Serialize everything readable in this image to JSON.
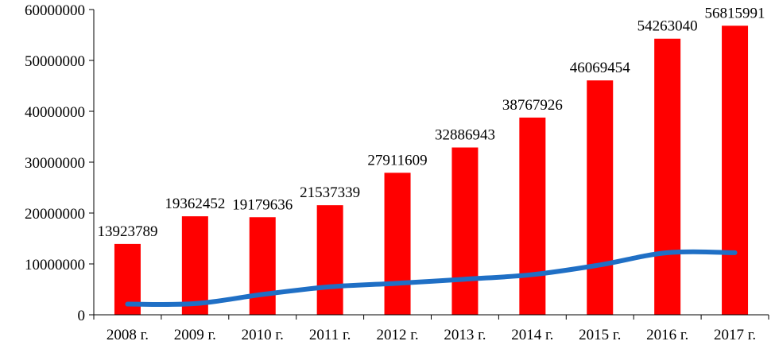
{
  "chart_data": {
    "type": "bar",
    "title": "",
    "xlabel": "",
    "ylabel": "",
    "categories": [
      "2008 г.",
      "2009 г.",
      "2010 г.",
      "2011 г.",
      "2012 г.",
      "2013 г.",
      "2014 г.",
      "2015 г.",
      "2016 г.",
      "2017 г."
    ],
    "series": [
      {
        "type": "bar",
        "color": "#ff0000",
        "values": [
          13923789,
          19362452,
          19179636,
          21537339,
          27911609,
          32886943,
          38767926,
          46069454,
          54263040,
          56815991
        ],
        "data_labels": [
          "13923789",
          "19362452",
          "19179636",
          "21537339",
          "27911609",
          "32886943",
          "38767926",
          "46069454",
          "54263040",
          "56815991"
        ]
      },
      {
        "type": "line",
        "color": "#1f6fc5",
        "values": [
          2100000,
          2200000,
          4000000,
          5500000,
          6200000,
          7000000,
          7900000,
          9800000,
          12200000,
          12200000
        ]
      }
    ],
    "ylim": [
      0,
      60000000
    ],
    "yticks": [
      0,
      10000000,
      20000000,
      30000000,
      40000000,
      50000000,
      60000000
    ],
    "ytick_labels": [
      "0",
      "10000000",
      "20000000",
      "30000000",
      "40000000",
      "50000000",
      "60000000"
    ],
    "grid": false,
    "legend": "none"
  }
}
